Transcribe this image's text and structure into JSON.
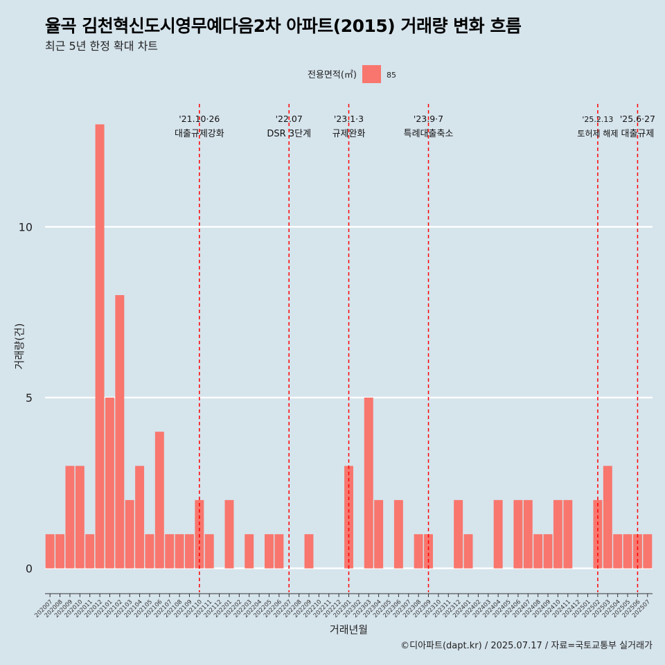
{
  "title": "율곡 김천혁신도시영무예다음2차 아파트(2015) 거래량 변화 흐름",
  "subtitle": "최근 5년 한정 확대 차트",
  "caption": "©디아파트(dapt.kr) / 2025.07.17 / 자료=국토교통부 실거래가",
  "colors": {
    "background": "#d6e4ec",
    "bar": "#f8766d",
    "event_line": "#ff0000",
    "grid": "#ffffff"
  },
  "chart_data": {
    "type": "bar",
    "xlabel": "거래년월",
    "ylabel": "거래량(건)",
    "ylim": [
      -0.7,
      13.7
    ],
    "yticks": [
      0,
      5,
      10
    ],
    "grid": true,
    "legend": {
      "title": "전용면적(㎡)",
      "position": "top",
      "items": [
        {
          "label": "85",
          "color": "#f8766d"
        }
      ]
    },
    "categories": [
      "202007",
      "202008",
      "202009",
      "202010",
      "202011",
      "202012",
      "202101",
      "202102",
      "202103",
      "202104",
      "202105",
      "202106",
      "202107",
      "202108",
      "202109",
      "202110",
      "202111",
      "202112",
      "202201",
      "202202",
      "202203",
      "202204",
      "202205",
      "202206",
      "202207",
      "202208",
      "202209",
      "202210",
      "202211",
      "202212",
      "202301",
      "202302",
      "202303",
      "202304",
      "202305",
      "202306",
      "202307",
      "202308",
      "202309",
      "202310",
      "202311",
      "202312",
      "202401",
      "202402",
      "202403",
      "202404",
      "202405",
      "202406",
      "202407",
      "202408",
      "202409",
      "202410",
      "202411",
      "202412",
      "202501",
      "202502",
      "202503",
      "202504",
      "202505",
      "202506",
      "202507"
    ],
    "series": [
      {
        "name": "85",
        "values": [
          1,
          1,
          3,
          3,
          1,
          13,
          5,
          8,
          2,
          3,
          1,
          4,
          1,
          1,
          1,
          2,
          1,
          0,
          2,
          0,
          1,
          0,
          1,
          1,
          0,
          0,
          1,
          0,
          0,
          0,
          3,
          0,
          5,
          2,
          0,
          2,
          0,
          1,
          1,
          0,
          0,
          2,
          1,
          0,
          0,
          2,
          0,
          2,
          2,
          1,
          1,
          2,
          2,
          0,
          0,
          2,
          3,
          1,
          1,
          1,
          1
        ]
      }
    ],
    "annotations": [
      {
        "x": "202110",
        "date": "'21.10·26",
        "label": "대출규제강화"
      },
      {
        "x": "202207",
        "date": "'22.07",
        "label": "DSR 3단계"
      },
      {
        "x": "202301",
        "date": "'23.1·3",
        "label": "규제완화"
      },
      {
        "x": "202309",
        "date": "'23.9·7",
        "label": "특례대출축소"
      },
      {
        "x": "202502",
        "date": "'25.2.13",
        "label": "토허제 해제"
      },
      {
        "x": "202506",
        "date": "'25.6·27",
        "label": "대출규제"
      }
    ]
  }
}
